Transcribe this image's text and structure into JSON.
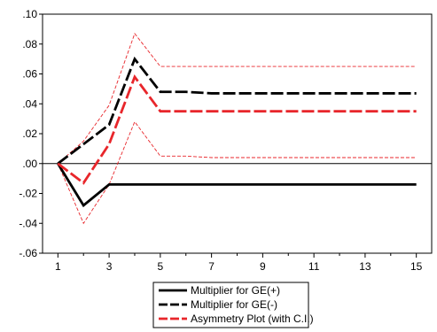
{
  "chart_data": {
    "type": "line",
    "title": "",
    "xlabel": "",
    "ylabel": "",
    "xlim": [
      0.4,
      15.6
    ],
    "ylim": [
      -0.06,
      0.1
    ],
    "x_ticks": [
      1,
      3,
      5,
      7,
      9,
      11,
      13,
      15
    ],
    "x_tick_labels": [
      "1",
      "3",
      "5",
      "7",
      "9",
      "11",
      "13",
      "15"
    ],
    "y_ticks": [
      0.1,
      0.08,
      0.06,
      0.04,
      0.02,
      0.0,
      -0.02,
      -0.04,
      -0.06
    ],
    "y_tick_labels": [
      ".10",
      ".08",
      ".06",
      ".04",
      ".02",
      ".00",
      "-.02",
      "-.04",
      "-.06"
    ],
    "grid": false,
    "zero_line": true,
    "legend_position": "bottom-center",
    "x": [
      1,
      2,
      3,
      4,
      5,
      6,
      7,
      8,
      9,
      10,
      11,
      12,
      13,
      14,
      15
    ],
    "series": [
      {
        "name": "Multiplier for GE(+)",
        "color": "#000000",
        "style": "solid",
        "values": [
          0.0,
          -0.028,
          -0.014,
          -0.014,
          -0.014,
          -0.014,
          -0.014,
          -0.014,
          -0.014,
          -0.014,
          -0.014,
          -0.014,
          -0.014,
          -0.014,
          -0.014
        ]
      },
      {
        "name": "Multiplier for GE(-)",
        "color": "#000000",
        "style": "dashed",
        "values": [
          0.0,
          0.013,
          0.026,
          0.07,
          0.048,
          0.048,
          0.047,
          0.047,
          0.047,
          0.047,
          0.047,
          0.047,
          0.047,
          0.047,
          0.047
        ]
      },
      {
        "name": "Asymmetry Plot (with C.I.)",
        "color": "#e8262b",
        "style": "dashed",
        "values": [
          0.0,
          -0.013,
          0.013,
          0.058,
          0.035,
          0.035,
          0.035,
          0.035,
          0.035,
          0.035,
          0.035,
          0.035,
          0.035,
          0.035,
          0.035
        ]
      },
      {
        "role": "upper-ci",
        "color": "#e8262b",
        "style": "thin",
        "values": [
          0.0,
          0.015,
          0.039,
          0.087,
          0.065,
          0.065,
          0.065,
          0.065,
          0.065,
          0.065,
          0.065,
          0.065,
          0.065,
          0.065,
          0.065
        ]
      },
      {
        "role": "lower-ci",
        "color": "#e8262b",
        "style": "thin",
        "values": [
          0.0,
          -0.04,
          -0.014,
          0.028,
          0.005,
          0.005,
          0.004,
          0.004,
          0.004,
          0.004,
          0.004,
          0.004,
          0.004,
          0.004,
          0.004
        ]
      }
    ],
    "legend": [
      {
        "label": "Multiplier for GE(+)",
        "color": "#000000",
        "style": "solid"
      },
      {
        "label": "Multiplier for GE(-)",
        "color": "#000000",
        "style": "dashed"
      },
      {
        "label": "Asymmetry Plot (with C.I.)",
        "color": "#e8262b",
        "style": "dashed"
      }
    ]
  }
}
